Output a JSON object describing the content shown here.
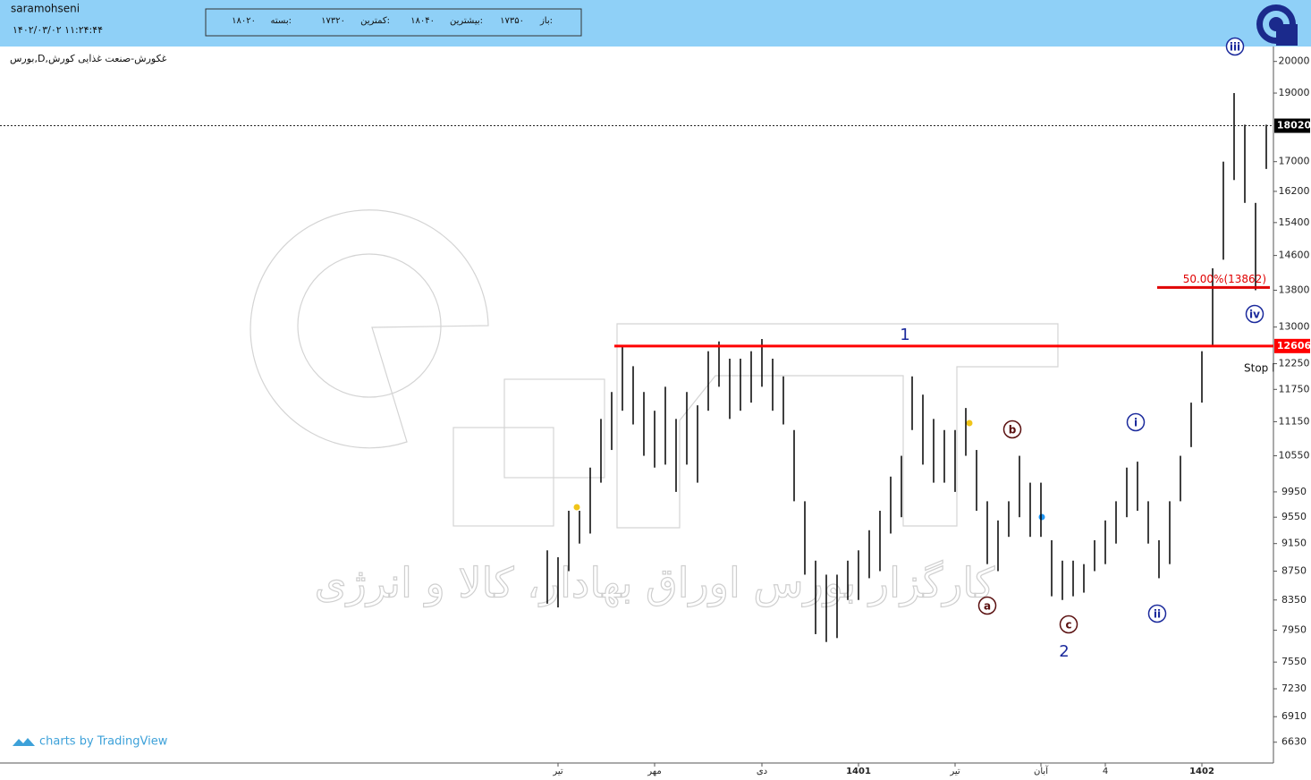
{
  "header": {
    "user": "saramohseni",
    "datetime": "۱۴۰۲/۰۳/۰۲ ۱۱:۲۴:۴۴",
    "ohlc": [
      {
        "label": "باز:",
        "value": "۱۷۳۵۰"
      },
      {
        "label": "بیشترین:",
        "value": "۱۸۰۴۰"
      },
      {
        "label": "کمترین:",
        "value": "۱۷۳۲۰"
      },
      {
        "label": "بسته:",
        "value": "۱۸۰۲۰"
      }
    ]
  },
  "branding": "charts by TradingView",
  "watermark": "کارگزار بورس اوراق بهادار، کالا و انرژی",
  "chart_data": {
    "type": "ohlc",
    "title": "بورس,D,غکورش-صنعت غذایی کورش",
    "color": "#000000",
    "log_scale": true,
    "categories": [
      null,
      "تیر",
      null,
      null,
      null,
      null,
      null,
      null,
      null,
      null,
      "مهر",
      null,
      null,
      null,
      null,
      null,
      null,
      null,
      null,
      null,
      "دی",
      null,
      null,
      null,
      null,
      null,
      null,
      null,
      null,
      "1401",
      null,
      null,
      null,
      null,
      null,
      null,
      null,
      null,
      "تیر",
      null,
      null,
      null,
      null,
      null,
      null,
      null,
      "آبان",
      null,
      null,
      null,
      null,
      null,
      "4",
      null,
      null,
      null,
      null,
      null,
      null,
      null,
      null,
      "1402",
      null,
      null,
      null,
      null,
      null,
      null
    ],
    "high": [
      9050,
      8950,
      9650,
      9650,
      10350,
      11200,
      11700,
      12600,
      12200,
      11700,
      11350,
      11800,
      11200,
      11700,
      11450,
      12500,
      12700,
      12350,
      12350,
      12500,
      12750,
      12350,
      12000,
      11000,
      9800,
      8900,
      8700,
      8700,
      8900,
      9050,
      9350,
      9650,
      10200,
      10550,
      12000,
      11650,
      11200,
      11000,
      11000,
      11400,
      10650,
      9800,
      9500,
      9800,
      10550,
      10100,
      10100,
      9200,
      8900,
      8900,
      8850,
      9200,
      9500,
      9800,
      10350,
      10450,
      9800,
      9200,
      9800,
      10550,
      11500,
      12500,
      14300,
      17000,
      19000,
      18050,
      15900,
      18050
    ],
    "low": [
      8300,
      8250,
      8750,
      9150,
      9300,
      10100,
      10650,
      11350,
      11100,
      10550,
      10350,
      10400,
      9950,
      10400,
      10100,
      11350,
      11800,
      11200,
      11350,
      11500,
      11800,
      11350,
      11100,
      9800,
      8700,
      7900,
      7800,
      7850,
      8350,
      8350,
      8650,
      8750,
      9300,
      9550,
      11000,
      10400,
      10100,
      10100,
      9950,
      10550,
      9650,
      8850,
      8750,
      9250,
      9550,
      9250,
      9250,
      8400,
      8350,
      8400,
      8450,
      8750,
      8850,
      9150,
      9550,
      9650,
      9150,
      8650,
      8850,
      9800,
      10700,
      11500,
      12600,
      14500,
      16500,
      15900,
      13800,
      16800
    ],
    "ylim": [
      6410,
      20490
    ],
    "yticks": [
      20000,
      19000,
      17000,
      16200,
      15400,
      14600,
      13800,
      13000,
      12250,
      11750,
      11150,
      10550,
      9950,
      9550,
      9150,
      8750,
      8350,
      7950,
      7550,
      7230,
      6910,
      6630
    ],
    "last_price": 18020,
    "levels": [
      {
        "value": 12606,
        "color": "#ff0000"
      },
      {
        "value": 13862,
        "color": "#e00000",
        "value_label": "50.00%(13862)"
      }
    ],
    "annotations": [
      "1",
      "2",
      "a",
      "b",
      "c",
      "i",
      "ii",
      "iii",
      "iv",
      "Stop l"
    ]
  }
}
